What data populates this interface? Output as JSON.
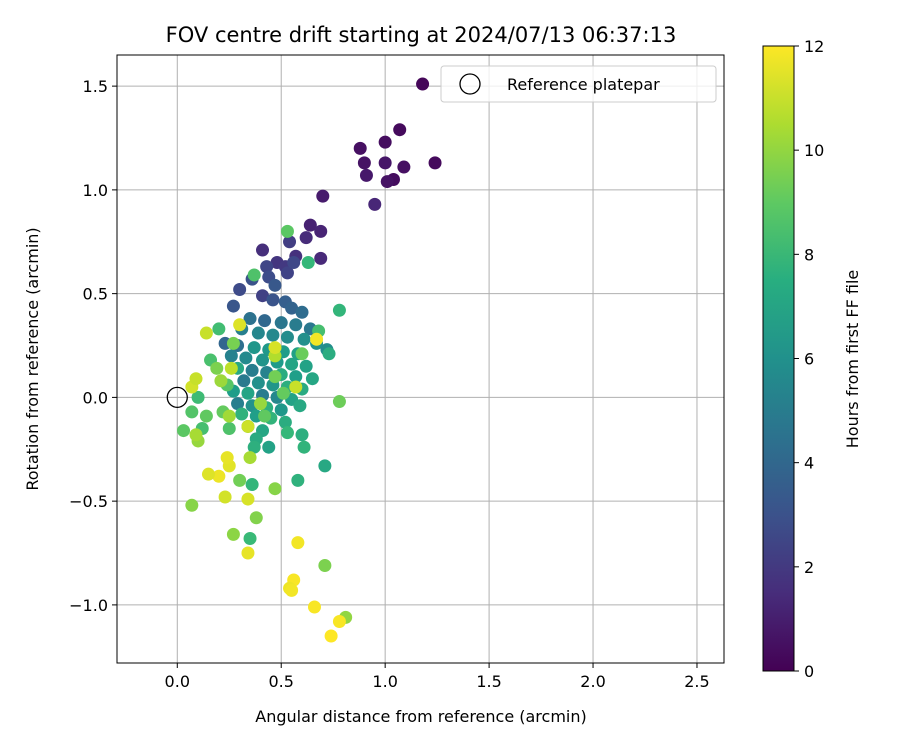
{
  "chart_data": {
    "type": "scatter",
    "title": "FOV centre drift starting at 2024/07/13 06:37:13",
    "xlabel": "Angular distance from reference (arcmin)",
    "ylabel": "Rotation from reference (arcmin)",
    "xlim": [
      -0.29,
      2.63
    ],
    "ylim": [
      -1.28,
      1.65
    ],
    "xticks": [
      0.0,
      0.5,
      1.0,
      1.5,
      2.0,
      2.5
    ],
    "xtick_labels": [
      "0.0",
      "0.5",
      "1.0",
      "1.5",
      "2.0",
      "2.5"
    ],
    "yticks": [
      -1.0,
      -0.5,
      0.0,
      0.5,
      1.0,
      1.5
    ],
    "ytick_labels": [
      "−1.0",
      "−0.5",
      "0.0",
      "0.5",
      "1.0",
      "1.5"
    ],
    "grid": true,
    "colormap": "viridis",
    "colorbar": {
      "label": "Hours from first FF file",
      "range": [
        0,
        12
      ],
      "ticks": [
        0,
        2,
        4,
        6,
        8,
        10,
        12
      ],
      "tick_labels": [
        "0",
        "2",
        "4",
        "6",
        "8",
        "10",
        "12"
      ]
    },
    "legend": {
      "position": "top-right",
      "entries": [
        "Reference platepar"
      ]
    },
    "reference_point": {
      "x": 0.0,
      "y": 0.0,
      "marker": "open-circle"
    },
    "points": [
      {
        "x": 1.18,
        "y": 1.51,
        "t": 0.2
      },
      {
        "x": 1.07,
        "y": 1.29,
        "t": 0.3
      },
      {
        "x": 1.0,
        "y": 1.23,
        "t": 0.4
      },
      {
        "x": 0.88,
        "y": 1.2,
        "t": 0.5
      },
      {
        "x": 0.9,
        "y": 1.13,
        "t": 0.6
      },
      {
        "x": 1.0,
        "y": 1.13,
        "t": 0.7
      },
      {
        "x": 1.24,
        "y": 1.13,
        "t": 0.3
      },
      {
        "x": 1.09,
        "y": 1.11,
        "t": 0.5
      },
      {
        "x": 0.91,
        "y": 1.07,
        "t": 0.8
      },
      {
        "x": 1.04,
        "y": 1.05,
        "t": 0.4
      },
      {
        "x": 1.01,
        "y": 1.04,
        "t": 0.6
      },
      {
        "x": 0.7,
        "y": 0.97,
        "t": 0.9
      },
      {
        "x": 0.95,
        "y": 0.93,
        "t": 1.3
      },
      {
        "x": 0.64,
        "y": 0.83,
        "t": 1.1
      },
      {
        "x": 0.69,
        "y": 0.8,
        "t": 1.2
      },
      {
        "x": 0.62,
        "y": 0.77,
        "t": 1.5
      },
      {
        "x": 0.54,
        "y": 0.75,
        "t": 2.2
      },
      {
        "x": 0.41,
        "y": 0.71,
        "t": 1.6
      },
      {
        "x": 0.57,
        "y": 0.68,
        "t": 1.7
      },
      {
        "x": 0.69,
        "y": 0.67,
        "t": 1.4
      },
      {
        "x": 0.48,
        "y": 0.65,
        "t": 1.9
      },
      {
        "x": 0.43,
        "y": 0.63,
        "t": 2.5
      },
      {
        "x": 0.52,
        "y": 0.63,
        "t": 2.0
      },
      {
        "x": 0.53,
        "y": 0.6,
        "t": 2.4
      },
      {
        "x": 0.56,
        "y": 0.65,
        "t": 2.6
      },
      {
        "x": 0.44,
        "y": 0.58,
        "t": 2.8
      },
      {
        "x": 0.36,
        "y": 0.57,
        "t": 3.0
      },
      {
        "x": 0.3,
        "y": 0.52,
        "t": 2.7
      },
      {
        "x": 0.47,
        "y": 0.54,
        "t": 3.3
      },
      {
        "x": 0.41,
        "y": 0.49,
        "t": 2.3
      },
      {
        "x": 0.46,
        "y": 0.47,
        "t": 3.1
      },
      {
        "x": 0.52,
        "y": 0.46,
        "t": 3.6
      },
      {
        "x": 0.27,
        "y": 0.44,
        "t": 3.2
      },
      {
        "x": 0.55,
        "y": 0.43,
        "t": 3.8
      },
      {
        "x": 0.6,
        "y": 0.41,
        "t": 4.2
      },
      {
        "x": 0.35,
        "y": 0.38,
        "t": 4.5
      },
      {
        "x": 0.42,
        "y": 0.37,
        "t": 4.0
      },
      {
        "x": 0.5,
        "y": 0.36,
        "t": 4.7
      },
      {
        "x": 0.57,
        "y": 0.35,
        "t": 5.0
      },
      {
        "x": 0.64,
        "y": 0.33,
        "t": 4.8
      },
      {
        "x": 0.31,
        "y": 0.33,
        "t": 5.2
      },
      {
        "x": 0.39,
        "y": 0.31,
        "t": 5.5
      },
      {
        "x": 0.46,
        "y": 0.3,
        "t": 5.6
      },
      {
        "x": 0.53,
        "y": 0.29,
        "t": 5.8
      },
      {
        "x": 0.61,
        "y": 0.28,
        "t": 6.0
      },
      {
        "x": 0.67,
        "y": 0.26,
        "t": 6.1
      },
      {
        "x": 0.23,
        "y": 0.26,
        "t": 3.9
      },
      {
        "x": 0.29,
        "y": 0.25,
        "t": 4.4
      },
      {
        "x": 0.37,
        "y": 0.24,
        "t": 6.3
      },
      {
        "x": 0.44,
        "y": 0.23,
        "t": 6.4
      },
      {
        "x": 0.51,
        "y": 0.22,
        "t": 6.6
      },
      {
        "x": 0.58,
        "y": 0.21,
        "t": 6.8
      },
      {
        "x": 0.72,
        "y": 0.23,
        "t": 5.9
      },
      {
        "x": 0.26,
        "y": 0.2,
        "t": 5.3
      },
      {
        "x": 0.33,
        "y": 0.19,
        "t": 5.7
      },
      {
        "x": 0.41,
        "y": 0.18,
        "t": 6.2
      },
      {
        "x": 0.48,
        "y": 0.17,
        "t": 6.5
      },
      {
        "x": 0.55,
        "y": 0.16,
        "t": 7.0
      },
      {
        "x": 0.62,
        "y": 0.15,
        "t": 6.9
      },
      {
        "x": 0.29,
        "y": 0.14,
        "t": 7.2
      },
      {
        "x": 0.36,
        "y": 0.13,
        "t": 5.1
      },
      {
        "x": 0.43,
        "y": 0.12,
        "t": 5.4
      },
      {
        "x": 0.5,
        "y": 0.11,
        "t": 7.4
      },
      {
        "x": 0.57,
        "y": 0.1,
        "t": 6.7
      },
      {
        "x": 0.65,
        "y": 0.09,
        "t": 7.1
      },
      {
        "x": 0.32,
        "y": 0.08,
        "t": 4.9
      },
      {
        "x": 0.39,
        "y": 0.07,
        "t": 6.0
      },
      {
        "x": 0.46,
        "y": 0.06,
        "t": 6.3
      },
      {
        "x": 0.53,
        "y": 0.05,
        "t": 7.5
      },
      {
        "x": 0.6,
        "y": 0.04,
        "t": 7.3
      },
      {
        "x": 0.27,
        "y": 0.03,
        "t": 6.6
      },
      {
        "x": 0.34,
        "y": 0.02,
        "t": 7.0
      },
      {
        "x": 0.41,
        "y": 0.01,
        "t": 5.0
      },
      {
        "x": 0.48,
        "y": 0.0,
        "t": 5.6
      },
      {
        "x": 0.55,
        "y": -0.01,
        "t": 6.9
      },
      {
        "x": 0.29,
        "y": -0.03,
        "t": 5.2
      },
      {
        "x": 0.36,
        "y": -0.04,
        "t": 6.1
      },
      {
        "x": 0.43,
        "y": -0.05,
        "t": 7.6
      },
      {
        "x": 0.5,
        "y": -0.06,
        "t": 6.4
      },
      {
        "x": 0.59,
        "y": -0.04,
        "t": 7.2
      },
      {
        "x": 0.31,
        "y": -0.08,
        "t": 7.7
      },
      {
        "x": 0.38,
        "y": -0.09,
        "t": 6.7
      },
      {
        "x": 0.45,
        "y": -0.1,
        "t": 7.8
      },
      {
        "x": 0.52,
        "y": -0.12,
        "t": 7.4
      },
      {
        "x": 0.34,
        "y": -0.14,
        "t": 7.9
      },
      {
        "x": 0.41,
        "y": -0.16,
        "t": 7.1
      },
      {
        "x": 0.53,
        "y": -0.17,
        "t": 8.0
      },
      {
        "x": 0.6,
        "y": -0.18,
        "t": 7.5
      },
      {
        "x": 0.38,
        "y": -0.2,
        "t": 7.3
      },
      {
        "x": 0.44,
        "y": -0.24,
        "t": 6.9
      },
      {
        "x": 0.37,
        "y": -0.24,
        "t": 7.6
      },
      {
        "x": 0.61,
        "y": -0.24,
        "t": 7.8
      },
      {
        "x": 0.71,
        "y": -0.33,
        "t": 7.2
      },
      {
        "x": 0.58,
        "y": -0.4,
        "t": 7.7
      },
      {
        "x": 0.36,
        "y": -0.42,
        "t": 7.9
      },
      {
        "x": 0.35,
        "y": -0.68,
        "t": 8.1
      },
      {
        "x": 0.2,
        "y": 0.33,
        "t": 8.3
      },
      {
        "x": 0.16,
        "y": 0.18,
        "t": 8.5
      },
      {
        "x": 0.24,
        "y": 0.06,
        "t": 8.8
      },
      {
        "x": 0.1,
        "y": 0.0,
        "t": 8.2
      },
      {
        "x": 0.07,
        "y": -0.07,
        "t": 8.7
      },
      {
        "x": 0.14,
        "y": -0.09,
        "t": 9.0
      },
      {
        "x": 0.25,
        "y": -0.15,
        "t": 8.6
      },
      {
        "x": 0.03,
        "y": -0.16,
        "t": 8.9
      },
      {
        "x": 0.12,
        "y": -0.15,
        "t": 8.4
      },
      {
        "x": 0.22,
        "y": -0.07,
        "t": 9.1
      },
      {
        "x": 0.37,
        "y": 0.59,
        "t": 8.6
      },
      {
        "x": 0.53,
        "y": 0.8,
        "t": 8.9
      },
      {
        "x": 0.63,
        "y": 0.65,
        "t": 8.0
      },
      {
        "x": 0.78,
        "y": 0.42,
        "t": 7.9
      },
      {
        "x": 0.68,
        "y": 0.32,
        "t": 8.4
      },
      {
        "x": 0.6,
        "y": 0.21,
        "t": 9.2
      },
      {
        "x": 0.73,
        "y": 0.21,
        "t": 7.4
      },
      {
        "x": 0.78,
        "y": -0.02,
        "t": 9.3
      },
      {
        "x": 0.47,
        "y": 0.1,
        "t": 9.4
      },
      {
        "x": 0.51,
        "y": 0.02,
        "t": 9.1
      },
      {
        "x": 0.42,
        "y": -0.09,
        "t": 9.0
      },
      {
        "x": 0.27,
        "y": 0.26,
        "t": 9.5
      },
      {
        "x": 0.19,
        "y": 0.14,
        "t": 9.6
      },
      {
        "x": 0.3,
        "y": -0.4,
        "t": 9.4
      },
      {
        "x": 0.38,
        "y": -0.58,
        "t": 9.7
      },
      {
        "x": 0.47,
        "y": -0.44,
        "t": 9.8
      },
      {
        "x": 0.27,
        "y": -0.66,
        "t": 9.9
      },
      {
        "x": 0.71,
        "y": -0.81,
        "t": 9.6
      },
      {
        "x": 0.81,
        "y": -1.06,
        "t": 10.0
      },
      {
        "x": 0.07,
        "y": -0.52,
        "t": 9.8
      },
      {
        "x": 0.21,
        "y": 0.08,
        "t": 10.2
      },
      {
        "x": 0.1,
        "y": -0.21,
        "t": 10.1
      },
      {
        "x": 0.09,
        "y": -0.18,
        "t": 10.4
      },
      {
        "x": 0.25,
        "y": -0.09,
        "t": 10.3
      },
      {
        "x": 0.35,
        "y": -0.29,
        "t": 10.4
      },
      {
        "x": 0.4,
        "y": -0.03,
        "t": 10.1
      },
      {
        "x": 0.47,
        "y": 0.2,
        "t": 10.6
      },
      {
        "x": 0.26,
        "y": 0.14,
        "t": 10.8
      },
      {
        "x": 0.14,
        "y": 0.31,
        "t": 11.0
      },
      {
        "x": 0.07,
        "y": 0.05,
        "t": 11.2
      },
      {
        "x": 0.09,
        "y": 0.09,
        "t": 11.0
      },
      {
        "x": 0.3,
        "y": 0.35,
        "t": 11.4
      },
      {
        "x": 0.47,
        "y": 0.24,
        "t": 11.3
      },
      {
        "x": 0.34,
        "y": -0.14,
        "t": 11.1
      },
      {
        "x": 0.25,
        "y": -0.33,
        "t": 11.5
      },
      {
        "x": 0.24,
        "y": -0.29,
        "t": 11.6
      },
      {
        "x": 0.2,
        "y": -0.38,
        "t": 11.7
      },
      {
        "x": 0.15,
        "y": -0.37,
        "t": 11.4
      },
      {
        "x": 0.23,
        "y": -0.48,
        "t": 11.2
      },
      {
        "x": 0.34,
        "y": -0.49,
        "t": 11.3
      },
      {
        "x": 0.34,
        "y": -0.75,
        "t": 11.6
      },
      {
        "x": 0.58,
        "y": -0.7,
        "t": 11.8
      },
      {
        "x": 0.56,
        "y": -0.88,
        "t": 11.9
      },
      {
        "x": 0.54,
        "y": -0.92,
        "t": 11.7
      },
      {
        "x": 0.55,
        "y": -0.93,
        "t": 11.8
      },
      {
        "x": 0.66,
        "y": -1.01,
        "t": 11.9
      },
      {
        "x": 0.78,
        "y": -1.08,
        "t": 11.9
      },
      {
        "x": 0.74,
        "y": -1.15,
        "t": 12.0
      },
      {
        "x": 0.67,
        "y": 0.28,
        "t": 11.8
      },
      {
        "x": 0.57,
        "y": 0.05,
        "t": 11.0
      }
    ]
  }
}
